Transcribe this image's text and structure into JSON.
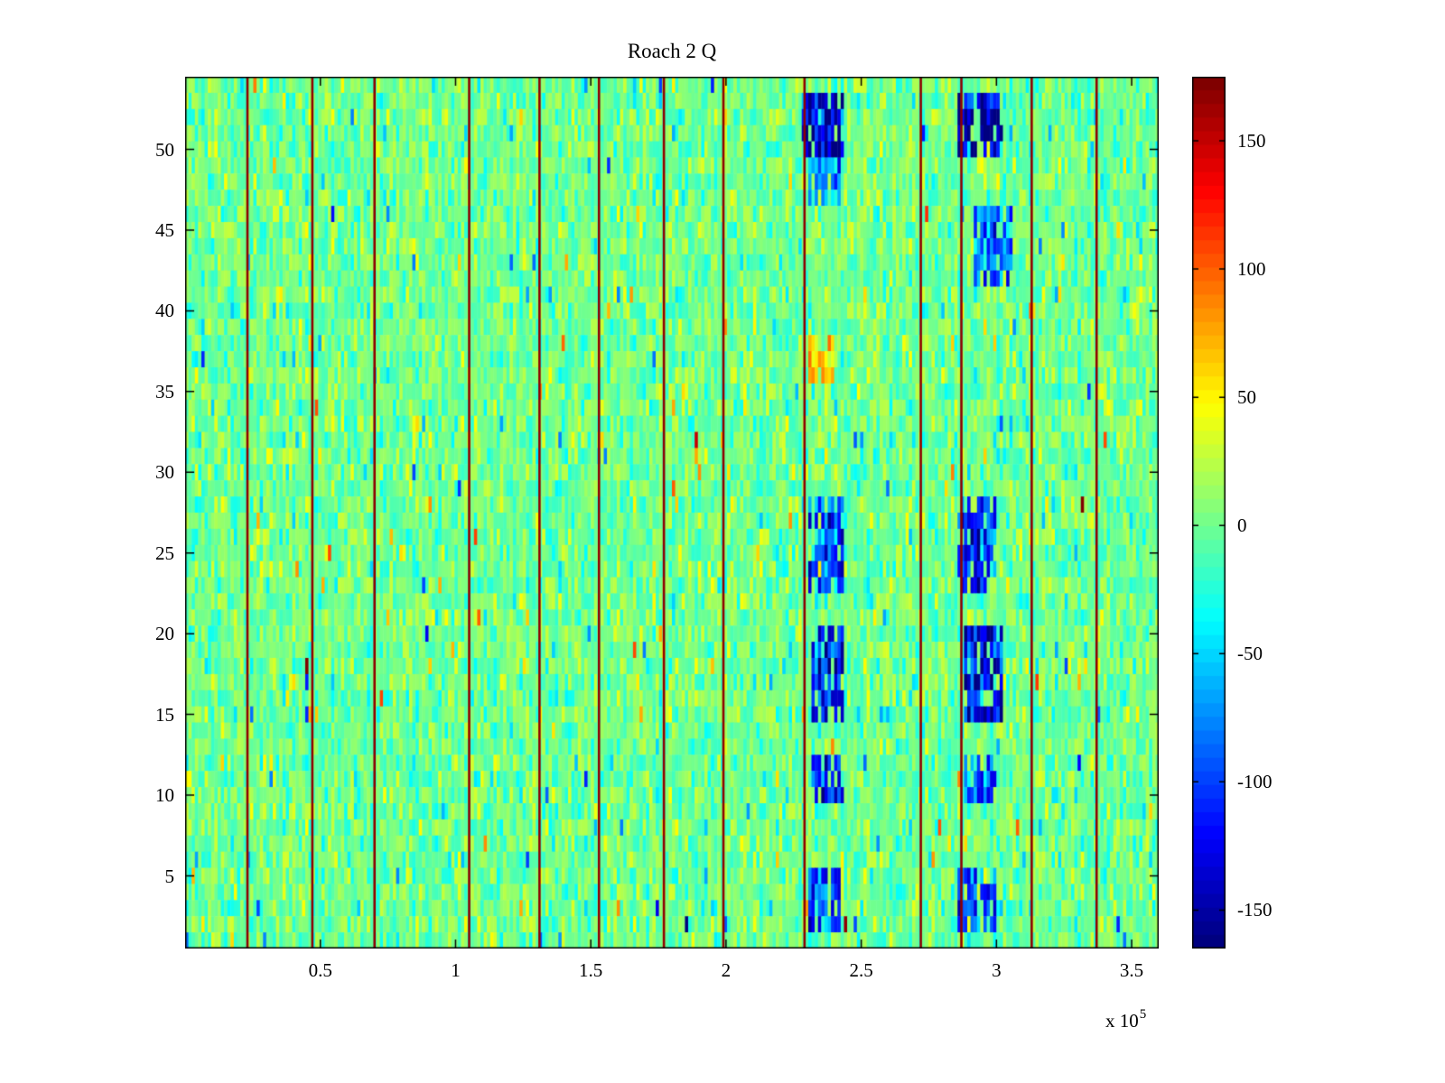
{
  "chart_data": {
    "type": "heatmap",
    "title": "Roach 2 Q",
    "colormap": "jet",
    "x_range_units": [
      0,
      3.6
    ],
    "x_unit_scale": 100000,
    "y_range": [
      0.5,
      54.5
    ],
    "rows": 54,
    "cols": 300,
    "clim": [
      -165,
      175
    ],
    "x_tick_values": [
      0.5,
      1,
      1.5,
      2,
      2.5,
      3,
      3.5
    ],
    "x_tick_labels": [
      "0.5",
      "1",
      "1.5",
      "2",
      "2.5",
      "3",
      "3.5"
    ],
    "y_tick_values": [
      5,
      10,
      15,
      20,
      25,
      30,
      35,
      40,
      45,
      50
    ],
    "y_tick_labels": [
      "5",
      "10",
      "15",
      "20",
      "25",
      "30",
      "35",
      "40",
      "45",
      "50"
    ],
    "colorbar_tick_values": [
      150,
      100,
      50,
      0,
      -50,
      -100,
      -150
    ],
    "colorbar_tick_labels": [
      "150",
      "100",
      "50",
      "0",
      "-50",
      "-100",
      "-150"
    ],
    "x_multiplier": {
      "base": "x 10",
      "exp": "5"
    },
    "vertical_lines_x": [
      0.23,
      0.47,
      0.7,
      1.05,
      1.31,
      1.53,
      1.77,
      1.99,
      2.29,
      2.72,
      2.87,
      3.13,
      3.37
    ],
    "vertical_line_value": 170,
    "noise": {
      "mean": 0,
      "std": 18,
      "spike_prob": 0.035,
      "spike_gain": 2.8
    },
    "blob_regions": [
      {
        "x0": 2.28,
        "x1": 2.44,
        "y0": 49.5,
        "y1": 53.5,
        "value": -140
      },
      {
        "x0": 2.86,
        "x1": 3.02,
        "y0": 49.5,
        "y1": 53.5,
        "value": -150
      },
      {
        "x0": 2.3,
        "x1": 2.42,
        "y0": 46.5,
        "y1": 49.0,
        "value": -75
      },
      {
        "x0": 2.92,
        "x1": 3.06,
        "y0": 41.5,
        "y1": 46.5,
        "value": -85
      },
      {
        "x0": 2.3,
        "x1": 2.44,
        "y0": 22.5,
        "y1": 28.5,
        "value": -95
      },
      {
        "x0": 2.86,
        "x1": 3.0,
        "y0": 22.5,
        "y1": 28.5,
        "value": -110
      },
      {
        "x0": 2.32,
        "x1": 2.44,
        "y0": 14.5,
        "y1": 20.5,
        "value": -115
      },
      {
        "x0": 2.88,
        "x1": 3.02,
        "y0": 14.5,
        "y1": 20.5,
        "value": -125
      },
      {
        "x0": 2.32,
        "x1": 2.44,
        "y0": 10.0,
        "y1": 12.5,
        "value": -105
      },
      {
        "x0": 2.88,
        "x1": 3.0,
        "y0": 10.0,
        "y1": 12.5,
        "value": -95
      },
      {
        "x0": 2.3,
        "x1": 2.42,
        "y0": 2.0,
        "y1": 5.5,
        "value": -105
      },
      {
        "x0": 2.86,
        "x1": 3.0,
        "y0": 2.0,
        "y1": 5.5,
        "value": -100
      },
      {
        "x0": 2.3,
        "x1": 2.4,
        "y0": 36.0,
        "y1": 38.5,
        "value": 60
      }
    ]
  }
}
